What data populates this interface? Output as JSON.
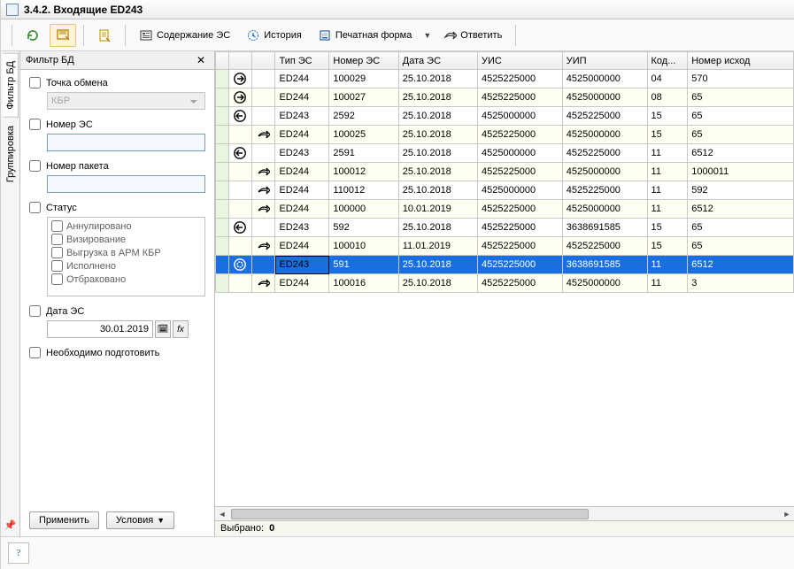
{
  "window": {
    "title": "3.4.2. Входящие ED243"
  },
  "toolbar": {
    "content": "Содержание ЭС",
    "history": "История",
    "print": "Печатная форма",
    "reply": "Ответить"
  },
  "vtabs": {
    "filter": "Фильтр БД",
    "group": "Группировка"
  },
  "filter": {
    "title": "Фильтр БД",
    "point_label": "Точка обмена",
    "point_value": "КБР",
    "num_es_label": "Номер ЭС",
    "num_pkt_label": "Номер пакета",
    "status_label": "Статус",
    "status_items": [
      "Аннулировано",
      "Визирование",
      "Выгрузка в АРМ КБР",
      "Исполнено",
      "Отбраковано"
    ],
    "date_label": "Дата ЭС",
    "date_value": "30.01.2019",
    "prepare_label": "Необходимо подготовить",
    "apply": "Применить",
    "conditions": "Условия"
  },
  "grid": {
    "columns": [
      "",
      "",
      "",
      "Тип ЭС",
      "Номер ЭС",
      "Дата ЭС",
      "УИС",
      "УИП",
      "Код...",
      "Номер исход"
    ],
    "rows": [
      {
        "lvl": 0,
        "ic": "out",
        "type": "ED244",
        "num": "100029",
        "date": "25.10.2018",
        "uis": "4525225000",
        "uip": "4525000000",
        "kod": "04",
        "outnum": "570",
        "alt": "a"
      },
      {
        "lvl": 0,
        "ic": "out",
        "type": "ED244",
        "num": "100027",
        "date": "25.10.2018",
        "uis": "4525225000",
        "uip": "4525000000",
        "kod": "08",
        "outnum": "65",
        "alt": "b"
      },
      {
        "lvl": 0,
        "ic": "in",
        "type": "ED243",
        "num": "2592",
        "date": "25.10.2018",
        "uis": "4525000000",
        "uip": "4525225000",
        "kod": "15",
        "outnum": "65",
        "alt": "a"
      },
      {
        "lvl": 1,
        "ic": "reply",
        "type": "ED244",
        "num": "100025",
        "date": "25.10.2018",
        "uis": "4525225000",
        "uip": "4525000000",
        "kod": "15",
        "outnum": "65",
        "alt": "b"
      },
      {
        "lvl": 0,
        "ic": "in",
        "type": "ED243",
        "num": "2591",
        "date": "25.10.2018",
        "uis": "4525000000",
        "uip": "4525225000",
        "kod": "11",
        "outnum": "6512",
        "alt": "a"
      },
      {
        "lvl": 1,
        "ic": "reply",
        "type": "ED244",
        "num": "100012",
        "date": "25.10.2018",
        "uis": "4525225000",
        "uip": "4525000000",
        "kod": "11",
        "outnum": "1000011",
        "alt": "b"
      },
      {
        "lvl": 1,
        "ic": "reply",
        "type": "ED244",
        "num": "110012",
        "date": "25.10.2018",
        "uis": "4525000000",
        "uip": "4525225000",
        "kod": "11",
        "outnum": "592",
        "alt": "a"
      },
      {
        "lvl": 1,
        "ic": "reply",
        "type": "ED244",
        "num": "100000",
        "date": "10.01.2019",
        "uis": "4525225000",
        "uip": "4525000000",
        "kod": "11",
        "outnum": "6512",
        "alt": "b"
      },
      {
        "lvl": 0,
        "ic": "in",
        "type": "ED243",
        "num": "592",
        "date": "25.10.2018",
        "uis": "4525225000",
        "uip": "3638691585",
        "kod": "15",
        "outnum": "65",
        "alt": "a"
      },
      {
        "lvl": 1,
        "ic": "reply",
        "type": "ED244",
        "num": "100010",
        "date": "11.01.2019",
        "uis": "4525225000",
        "uip": "4525225000",
        "kod": "15",
        "outnum": "65",
        "alt": "b"
      },
      {
        "lvl": 0,
        "ic": "insel",
        "type": "ED243",
        "num": "591",
        "date": "25.10.2018",
        "uis": "4525225000",
        "uip": "3638691585",
        "kod": "11",
        "outnum": "6512",
        "alt": "a",
        "selected": true
      },
      {
        "lvl": 1,
        "ic": "reply",
        "type": "ED244",
        "num": "100016",
        "date": "25.10.2018",
        "uis": "4525225000",
        "uip": "4525000000",
        "kod": "11",
        "outnum": "3",
        "alt": "b"
      }
    ],
    "selected_label": "Выбрано:",
    "selected_count": "0"
  },
  "colors": {
    "selection": "#1a6fe0",
    "greenmark": "#e8f6e0",
    "altrow": "#fffff2"
  }
}
